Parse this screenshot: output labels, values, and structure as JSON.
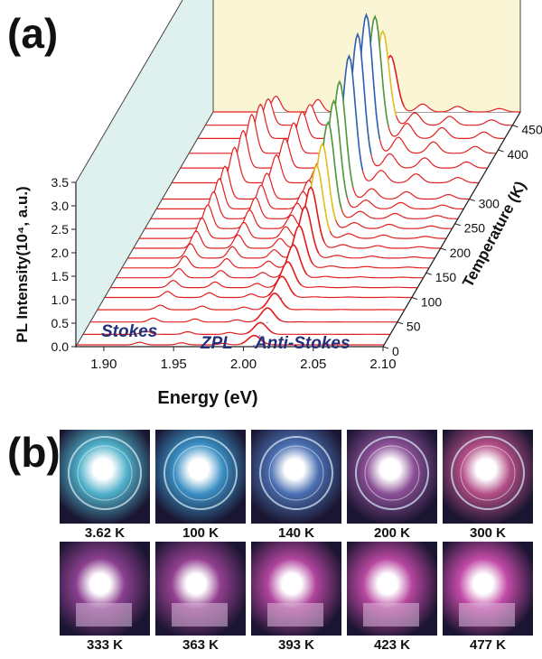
{
  "panel_labels": {
    "a": "(a)",
    "b": "(b)"
  },
  "chart_data": {
    "type": "waterfall-line",
    "xlabel": "Energy (eV)",
    "ylabel": "PL Intensity(10⁴, a.u.)",
    "zlabel": "Temperature (K)",
    "xlim": [
      1.88,
      2.1
    ],
    "ylim": [
      0,
      3.5
    ],
    "zlim": [
      0,
      477
    ],
    "x_ticks": [
      "1.90",
      "1.95",
      "2.00",
      "2.05",
      "2.10"
    ],
    "y_ticks": [
      "0.0",
      "0.5",
      "1.0",
      "1.5",
      "2.0",
      "2.5",
      "3.0",
      "3.5"
    ],
    "z_ticks": [
      "0",
      "50",
      "100",
      "150",
      "200",
      "250",
      "300",
      "400",
      "450"
    ],
    "annotations": [
      "Stokes",
      "ZPL",
      "Anti-Stokes"
    ],
    "zpl_energy": 2.007,
    "temperatures": [
      3.62,
      25,
      50,
      75,
      100,
      120,
      140,
      160,
      180,
      200,
      220,
      240,
      260,
      280,
      300,
      333,
      363,
      393,
      423,
      450,
      477
    ],
    "stokes_peaks": [
      1.925,
      1.955,
      1.985
    ],
    "anti_stokes_peaks": [
      2.03,
      2.055,
      2.085
    ],
    "zpl_heights": [
      0.2,
      0.25,
      0.3,
      0.35,
      0.45,
      0.55,
      0.7,
      0.9,
      1.1,
      1.3,
      1.55,
      1.8,
      2.05,
      2.3,
      2.5,
      2.7,
      2.85,
      2.95,
      2.6,
      2.0,
      1.2
    ]
  },
  "photos": {
    "row1": [
      {
        "caption": "3.62 K",
        "hue": "#4fb0c9"
      },
      {
        "caption": "100 K",
        "hue": "#3a8fc4"
      },
      {
        "caption": "140 K",
        "hue": "#4a6fb2"
      },
      {
        "caption": "200 K",
        "hue": "#8a4f96"
      },
      {
        "caption": "300 K",
        "hue": "#b24e86"
      }
    ],
    "row2": [
      {
        "caption": "333 K",
        "hue": "#8b3f8f"
      },
      {
        "caption": "363 K",
        "hue": "#93408f"
      },
      {
        "caption": "393 K",
        "hue": "#b0449c"
      },
      {
        "caption": "423 K",
        "hue": "#b7469f"
      },
      {
        "caption": "477 K",
        "hue": "#c24aa6"
      }
    ]
  }
}
